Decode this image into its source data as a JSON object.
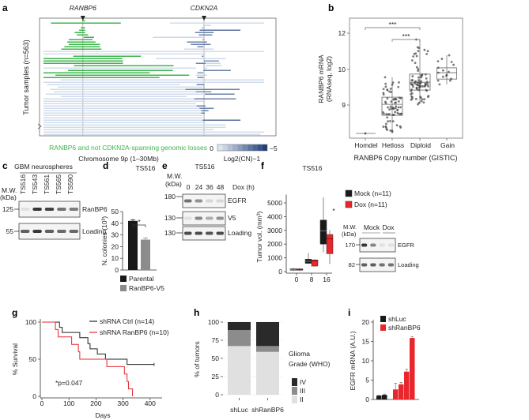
{
  "panel_labels": {
    "a": "a",
    "b": "b",
    "c": "c",
    "d": "d",
    "e": "e",
    "f": "f",
    "g": "g",
    "h": "h",
    "i": "i"
  },
  "colors": {
    "green": "#3bb54a",
    "blue_light": "#dde6f3",
    "blue_dark": "#1f3f7a",
    "red": "#e8262b",
    "black": "#1a1a1a",
    "gray": "#8c8c8c"
  },
  "chart_data": [
    {
      "id": "a",
      "type": "segments",
      "ylabel": "Tumor samples (n=563)",
      "xlabel": "Chromosome 9p (1–30Mb)",
      "xlim": [
        0,
        30
      ],
      "genes": [
        {
          "name": "RANBP6",
          "pos_mb": 5.3
        },
        {
          "name": "CDKN2A",
          "pos_mb": 21.6
        }
      ],
      "legend_green": "RANBP6 and not CDKN2A-spanning genomic losses",
      "colorbar": {
        "min_label": "0",
        "max_label": "−5",
        "title": "Log2(CN)−1",
        "min": 0,
        "max": -5
      },
      "rows": [
        [
          [
            5.2,
            5.6,
            0,
            "g"
          ]
        ],
        [
          [
            1.0,
            10.4,
            0,
            "g"
          ],
          [
            17.0,
            29.7,
            -0.3,
            "b"
          ]
        ],
        [
          [
            21.5,
            22.5,
            -0.5,
            "b"
          ]
        ],
        [
          [
            5.0,
            5.6,
            0,
            "g"
          ],
          [
            21.3,
            21.5,
            -2,
            "b"
          ]
        ],
        [
          [
            4.8,
            5.6,
            0,
            "g"
          ],
          [
            21.0,
            26.5,
            -3.5,
            "b"
          ]
        ],
        [
          [
            4.2,
            5.6,
            0,
            "g"
          ],
          [
            20.4,
            22.9,
            -3,
            "b"
          ]
        ],
        [
          [
            4.5,
            6.0,
            0,
            "g"
          ],
          [
            20.9,
            22.7,
            -3,
            "b"
          ]
        ],
        [
          [
            5.4,
            6.8,
            0,
            "g"
          ],
          [
            14.7,
            21.5,
            -0.4,
            "b"
          ]
        ],
        [
          [
            3.4,
            6.6,
            0,
            "g"
          ],
          [
            21.4,
            21.6,
            -2,
            "b"
          ]
        ],
        [
          [
            3.2,
            7.0,
            0,
            "g"
          ],
          [
            19.3,
            22.0,
            -3,
            "b"
          ]
        ],
        [
          [
            3.4,
            7.6,
            0,
            "g"
          ],
          [
            19.8,
            22.5,
            -3,
            "b"
          ]
        ],
        [
          [
            2.8,
            7.6,
            0,
            "g"
          ],
          [
            20.7,
            21.5,
            -3,
            "b"
          ]
        ],
        [
          [
            2.4,
            7.8,
            0,
            "g"
          ],
          [
            18.9,
            22.9,
            -0.4,
            "b"
          ]
        ],
        [
          [
            0,
            29.7,
            -0.3,
            "b"
          ]
        ],
        [
          [
            0,
            21.8,
            -0.3,
            "b"
          ]
        ],
        [
          [
            4.0,
            13.1,
            0,
            "g"
          ],
          [
            21.3,
            21.5,
            -3,
            "b"
          ]
        ],
        [
          [
            0,
            10.6,
            0,
            "g"
          ],
          [
            15.1,
            24.5,
            -0.4,
            "b"
          ]
        ],
        [
          [
            0,
            10.7,
            0,
            "g"
          ],
          [
            21.6,
            23.6,
            -2.5,
            "b"
          ]
        ],
        [
          [
            0,
            10.7,
            0,
            "g"
          ],
          [
            20.5,
            21.8,
            -3,
            "b"
          ],
          [
            21.8,
            23.8,
            -0.5,
            "b"
          ]
        ],
        [
          [
            4.1,
            17.5,
            0,
            "g"
          ],
          [
            21.8,
            24.0,
            -0.5,
            "b"
          ]
        ],
        [
          [
            0,
            20.5,
            -0.3,
            "b"
          ],
          [
            21.5,
            22.0,
            -0.5,
            "b"
          ]
        ],
        [
          [
            3.3,
            17.4,
            0,
            "g"
          ],
          [
            21.5,
            25.2,
            -3,
            "b"
          ]
        ],
        [
          [
            0,
            14.3,
            0,
            "g"
          ],
          [
            20.7,
            21.5,
            -2.5,
            "b"
          ]
        ],
        [
          [
            1.6,
            19.6,
            0,
            "g"
          ],
          [
            20.5,
            22.0,
            -0.5,
            "b"
          ]
        ],
        [
          [
            0,
            15.6,
            0,
            "g"
          ],
          [
            20.7,
            21.5,
            -3,
            "b"
          ]
        ],
        [
          [
            2.3,
            29.7,
            -0.3,
            "b"
          ]
        ],
        [
          [
            0,
            29.7,
            -0.3,
            "b"
          ]
        ],
        [
          [
            0.5,
            18.4,
            -0.3,
            "b"
          ],
          [
            20.6,
            21.6,
            -3,
            "b"
          ]
        ],
        [
          [
            1.9,
            21.4,
            -0.3,
            "b"
          ],
          [
            21.5,
            21.6,
            -2,
            "b"
          ]
        ],
        [
          [
            0.9,
            19.1,
            -0.3,
            "b"
          ],
          [
            19.1,
            26.4,
            -3,
            "b"
          ]
        ],
        [
          [
            1.4,
            20.5,
            -0.3,
            "b"
          ],
          [
            20.5,
            22.6,
            -2.5,
            "b"
          ]
        ],
        [
          [
            0.3,
            21.7,
            -0.3,
            "b"
          ],
          [
            21.7,
            25.7,
            -3,
            "b"
          ]
        ],
        [
          [
            2.3,
            19.3,
            -0.3,
            "b"
          ]
        ],
        [
          [
            0,
            20.3,
            -0.3,
            "b"
          ],
          [
            20.3,
            25.9,
            -3,
            "b"
          ]
        ],
        [
          [
            0,
            21.5,
            -0.3,
            "b"
          ]
        ],
        [
          [
            0,
            20.5,
            -0.3,
            "b"
          ]
        ],
        [
          [
            0,
            20.6,
            -0.3,
            "b"
          ],
          [
            20.6,
            21.8,
            -3,
            "b"
          ]
        ],
        [
          [
            0,
            21.0,
            -0.3,
            "b"
          ],
          [
            21.0,
            22.9,
            -3,
            "b"
          ]
        ],
        [
          [
            0,
            21.2,
            -0.3,
            "b"
          ],
          [
            21.2,
            22.2,
            -3,
            "b"
          ]
        ],
        [
          [
            0,
            21.2,
            -0.3,
            "b"
          ],
          [
            21.2,
            21.7,
            -3,
            "b"
          ]
        ],
        [
          [
            0,
            21.4,
            -0.3,
            "b"
          ]
        ],
        [
          [
            0,
            21.4,
            -0.3,
            "b"
          ]
        ],
        [
          [
            0,
            21.4,
            -0.3,
            "b"
          ],
          [
            21.4,
            26.5,
            -3.5,
            "b"
          ]
        ],
        [
          [
            0,
            21.8,
            -0.3,
            "b"
          ]
        ],
        [
          [
            0,
            24.5,
            -0.3,
            "b"
          ]
        ],
        [
          [
            0,
            24.5,
            -0.3,
            "b"
          ]
        ],
        [
          [
            0,
            22.9,
            -0.3,
            "b"
          ]
        ],
        [
          [
            0,
            29.7,
            -0.3,
            "b"
          ]
        ],
        [
          [
            0,
            29.2,
            -0.3,
            "b"
          ]
        ]
      ]
    },
    {
      "id": "b",
      "type": "box",
      "ylabel": "RANBP6 mRNA",
      "ylabel2": "(RNAseq, log2)",
      "xlabel": "RANBP6 Copy number (GISTIC)",
      "yticks": [
        "12",
        "10",
        "9"
      ],
      "ytick_values": [
        12,
        10,
        9
      ],
      "categories": [
        "Homdel",
        "Hetloss",
        "Diploid",
        "Gain"
      ],
      "boxes": [
        {
          "q1": 8.2,
          "median": 8.2,
          "q3": 8.2,
          "min": 8.2,
          "max": 8.2,
          "n": 1
        },
        {
          "q1": 8.71,
          "median": 9.02,
          "q3": 9.22,
          "min": 8.24,
          "max": 9.78,
          "n": 70
        },
        {
          "q1": 9.42,
          "median": 9.64,
          "q3": 9.87,
          "min": 9.02,
          "max": 11.65,
          "n": 80
        },
        {
          "q1": 9.73,
          "median": 9.91,
          "q3": 10.09,
          "min": 9.58,
          "max": 10.78,
          "n": 16
        }
      ],
      "significance": [
        {
          "from": "Homdel",
          "to": "Diploid",
          "label": "***"
        },
        {
          "from": "Hetloss",
          "to": "Diploid",
          "label": "***"
        }
      ]
    },
    {
      "id": "d",
      "type": "bar",
      "title": "TS516",
      "ylabel": "N. colonies (10³)",
      "ylim": [
        0,
        50
      ],
      "yticks": [
        "0",
        "10",
        "20",
        "30",
        "40",
        "50"
      ],
      "categories": [
        "Parental",
        "RanBP6-V5"
      ],
      "values": [
        42,
        26
      ],
      "errors": [
        1,
        1.5
      ],
      "significance": "*"
    },
    {
      "id": "f",
      "type": "box",
      "title": "TS516",
      "ylabel": "Tumor vol. (mm³)",
      "ylim": [
        0,
        5000
      ],
      "yticks": [
        "0",
        "1000",
        "2000",
        "3000",
        "4000",
        "5000"
      ],
      "categories": [
        "0",
        "8",
        "16"
      ],
      "series": [
        {
          "name": "Mock (n=11)",
          "boxes": [
            {
              "q1": 100,
              "median": 150,
              "q3": 200,
              "min": 50,
              "max": 250
            },
            {
              "q1": 600,
              "median": 750,
              "q3": 900,
              "min": 550,
              "max": 1350
            },
            {
              "q1": 2000,
              "median": 2950,
              "q3": 3750,
              "min": 1400,
              "max": 5400
            }
          ]
        },
        {
          "name": "Dox (n=11)",
          "boxes": [
            {
              "q1": 100,
              "median": 150,
              "q3": 200,
              "min": 50,
              "max": 250
            },
            {
              "q1": 400,
              "median": 800,
              "q3": 850,
              "min": 350,
              "max": 900
            },
            {
              "q1": 1300,
              "median": 2400,
              "q3": 2700,
              "min": 550,
              "max": 3000
            }
          ]
        }
      ],
      "significance": "*"
    },
    {
      "id": "g",
      "type": "line",
      "ylabel": "% Survival",
      "xlabel": "Days",
      "xlim": [
        0,
        450
      ],
      "ylim": [
        0,
        100
      ],
      "xticks": [
        "0",
        "100",
        "200",
        "300",
        "400"
      ],
      "yticks": [
        "0",
        "50",
        "100"
      ],
      "annotation": "*p=0.047",
      "series": [
        {
          "name": "shRNA Ctrl (n=14)",
          "steps": [
            [
              0,
              100
            ],
            [
              65,
              93
            ],
            [
              75,
              86
            ],
            [
              140,
              79
            ],
            [
              170,
              71
            ],
            [
              178,
              64
            ],
            [
              205,
              57
            ],
            [
              235,
              50
            ],
            [
              315,
              43
            ],
            [
              415,
              43
            ]
          ]
        },
        {
          "name": "shRNA RanBP6 (n=10)",
          "steps": [
            [
              0,
              100
            ],
            [
              50,
              90
            ],
            [
              60,
              80
            ],
            [
              110,
              70
            ],
            [
              135,
              60
            ],
            [
              140,
              50
            ],
            [
              240,
              40
            ],
            [
              305,
              30
            ],
            [
              315,
              20
            ],
            [
              320,
              10
            ],
            [
              335,
              0
            ]
          ]
        }
      ]
    },
    {
      "id": "h",
      "type": "bar",
      "stacked": true,
      "ylabel": "% of tumors",
      "ylim": [
        0,
        100
      ],
      "yticks": [
        "0",
        "25",
        "50",
        "75",
        "100"
      ],
      "categories": [
        "shLuc",
        "shRanBP6"
      ],
      "legend_title": "Glioma",
      "legend_title2": "Grade (WHO)",
      "series": [
        {
          "name": "II",
          "values": [
            67,
            59
          ]
        },
        {
          "name": "III",
          "values": [
            22,
            8
          ]
        },
        {
          "name": "IV",
          "values": [
            11,
            33
          ]
        }
      ]
    },
    {
      "id": "i",
      "type": "bar",
      "ylabel": "EGFR mRNA (A.U.)",
      "ylim": [
        0,
        20
      ],
      "yticks": [
        "0",
        "5",
        "10",
        "15",
        "20"
      ],
      "series": [
        {
          "name": "shLuc",
          "values": [
            1.0,
            1.2
          ],
          "errors": [
            0.1,
            0.2
          ]
        },
        {
          "name": "shRanBP6",
          "values": [
            2.6,
            3.9,
            7.2,
            15.9
          ],
          "errors": [
            1.6,
            0.5,
            0.6,
            0.3
          ]
        }
      ]
    }
  ],
  "blots": {
    "c": {
      "title": "GBM neurospheres",
      "mw_label": "M.W.",
      "mw_unit": "(kDa)",
      "lanes": [
        "TS516",
        "TS543",
        "TS561",
        "TS565",
        "TS590"
      ],
      "rows": [
        {
          "label": "RanBP6",
          "mw": "125",
          "band_intensity": [
            0.05,
            0.9,
            0.85,
            0.6,
            0.55
          ]
        },
        {
          "label": "Loading",
          "mw": "55",
          "band_intensity": [
            0.7,
            0.9,
            0.7,
            0.65,
            0.65
          ]
        }
      ]
    },
    "e": {
      "title": "TS516",
      "mw_label": "M.W.",
      "mw_unit": "(kDa)",
      "lanes": [
        "0",
        "24",
        "36",
        "48"
      ],
      "lane_title": "Dox (h)",
      "rows": [
        {
          "label": "EGFR",
          "mw": "180",
          "band_intensity": [
            0.6,
            0.45,
            0.1,
            0.1
          ]
        },
        {
          "label": "V5",
          "mw": "130",
          "band_intensity": [
            0.05,
            0.5,
            0.3,
            0.45
          ]
        },
        {
          "label": "Loading",
          "mw": "130",
          "band_intensity": [
            0.8,
            0.8,
            0.75,
            0.8
          ]
        }
      ]
    },
    "f": {
      "mw_label": "M.W.",
      "mw_unit": "(kDa)",
      "groups": [
        "Mock",
        "Dox"
      ],
      "rows": [
        {
          "label": "EGFR",
          "mw": "170",
          "band_intensity": [
            0.9,
            0.5,
            0.05,
            0.05
          ]
        },
        {
          "label": "Loading",
          "mw": "82",
          "band_intensity": [
            0.7,
            0.7,
            0.6,
            0.6
          ]
        }
      ]
    }
  }
}
